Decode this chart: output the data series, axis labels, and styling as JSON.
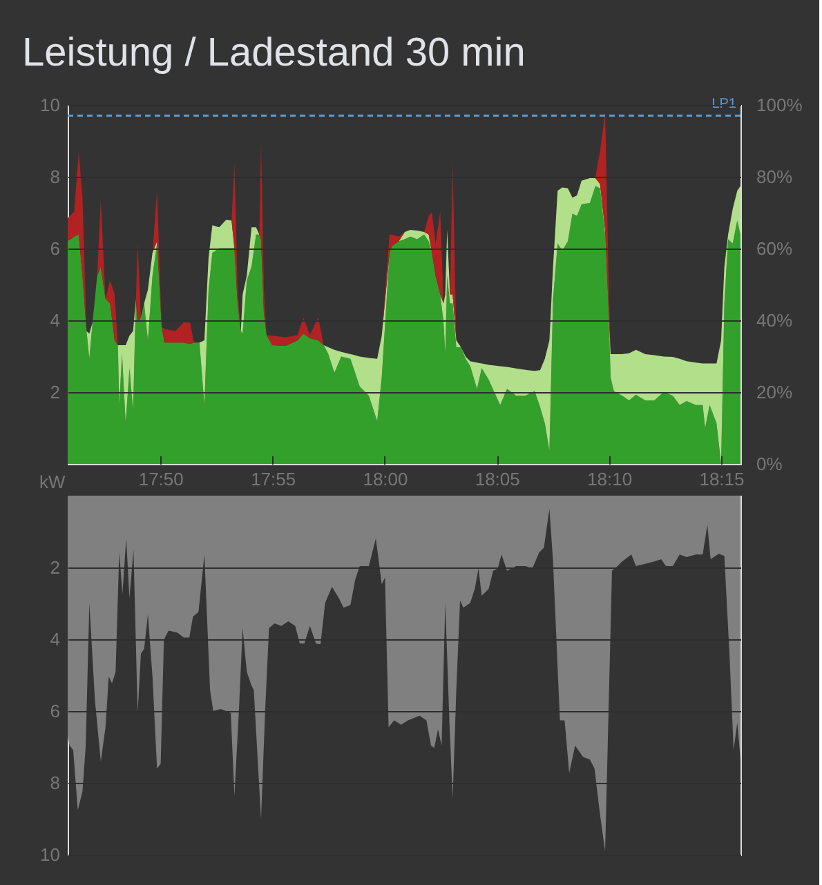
{
  "chart_data": [
    {
      "type": "area",
      "title": "Leistung / Ladestand 30 min",
      "ylabel": "kW",
      "stacked": true,
      "grid": "y",
      "xlim": [
        17.7644,
        18.2644
      ],
      "xticks": [
        {
          "value": 17.8333,
          "label": "17:50"
        },
        {
          "value": 17.9167,
          "label": "17:55"
        },
        {
          "value": 18.0,
          "label": "18:00"
        },
        {
          "value": 18.0833,
          "label": "18:05"
        },
        {
          "value": 18.1667,
          "label": "18:10"
        },
        {
          "value": 18.25,
          "label": "18:15"
        }
      ],
      "ylim": [
        0,
        10
      ],
      "yticks": [
        2,
        4,
        6,
        8,
        10
      ],
      "y2lim": [
        0,
        100
      ],
      "y2ticks": [
        {
          "value": 0,
          "label": "0%"
        },
        {
          "value": 20,
          "label": "20%"
        },
        {
          "value": 40,
          "label": "40%"
        },
        {
          "value": 60,
          "label": "60%"
        },
        {
          "value": 80,
          "label": "80%"
        },
        {
          "value": 100,
          "label": "100%"
        }
      ],
      "x": [
        17.7644,
        17.7692,
        17.7726,
        17.7754,
        17.7784,
        17.7805,
        17.7829,
        17.7863,
        17.789,
        17.7925,
        17.7959,
        17.7993,
        17.8017,
        17.8027,
        17.8048,
        17.8075,
        17.8103,
        17.813,
        17.8151,
        17.8164,
        17.8188,
        17.8212,
        17.824,
        17.8274,
        17.8308,
        17.8342,
        17.8363,
        17.8445,
        17.8506,
        17.8554,
        17.8582,
        17.8623,
        17.866,
        17.8691,
        17.8719,
        17.877,
        17.8821,
        17.8862,
        17.8883,
        17.8907,
        17.8931,
        17.8944,
        17.8975,
        17.901,
        17.9044,
        17.9068,
        17.9081,
        17.9102,
        17.9122,
        17.9164,
        17.9266,
        17.9352,
        17.9396,
        17.9444,
        17.9506,
        17.9547,
        17.9581,
        17.9626,
        17.9677,
        17.9745,
        17.9814,
        17.9882,
        17.9944,
        17.9978,
        18.0036,
        18.0053,
        18.0105,
        18.0149,
        18.019,
        18.0241,
        18.0293,
        18.0327,
        18.0351,
        18.0378,
        18.0413,
        18.0437,
        18.045,
        18.0464,
        18.0485,
        18.0505,
        18.0532,
        18.0567,
        18.0601,
        18.0635,
        18.0686,
        18.0721,
        18.0772,
        18.0858,
        18.0909,
        18.0977,
        18.1046,
        18.1114,
        18.1155,
        18.119,
        18.1224,
        18.1251,
        18.1285,
        18.132,
        18.1361,
        18.1395,
        18.1429,
        18.1463,
        18.1525,
        18.1566,
        18.16,
        18.1638,
        18.1662,
        18.1679,
        18.1703,
        18.1765,
        18.1816,
        18.1867,
        18.1936,
        18.2004,
        18.2073,
        18.2141,
        18.2192,
        18.2244,
        18.2312,
        18.2363,
        18.2381,
        18.2415,
        18.2466,
        18.25,
        18.2524,
        18.2552,
        18.2586,
        18.262,
        18.2644
      ],
      "series": [
        {
          "color": "#33a02c",
          "values": [
            6.2,
            6.33,
            6.39,
            5.24,
            3.7,
            2.93,
            3.95,
            5.24,
            5.49,
            4.6,
            4.47,
            3.44,
            3.31,
            1.64,
            3.06,
            1.13,
            2.67,
            1.51,
            4.6,
            3.95,
            4.08,
            4.47,
            3.44,
            5.24,
            6.14,
            3.83,
            3.38,
            3.38,
            3.38,
            3.34,
            3.38,
            3.38,
            1.64,
            4.85,
            5.88,
            6.01,
            6.01,
            6.01,
            6.01,
            4.47,
            3.7,
            3.63,
            5.11,
            5.49,
            6.39,
            6.39,
            6.26,
            4.21,
            3.59,
            3.31,
            3.29,
            3.44,
            3.63,
            3.5,
            3.44,
            3.31,
            3.06,
            2.54,
            2.99,
            2.93,
            2.16,
            1.9,
            1.19,
            2.41,
            5.88,
            6.07,
            6.2,
            6.26,
            6.33,
            6.26,
            6.39,
            6.2,
            5.88,
            5.24,
            4.72,
            3.95,
            3.06,
            5.24,
            4.47,
            4.47,
            3.25,
            3.25,
            2.93,
            2.73,
            2.09,
            2.67,
            2.35,
            1.64,
            2.09,
            1.9,
            1.9,
            2.03,
            1.58,
            1.13,
            0.36,
            4.6,
            6.14,
            5.94,
            6.2,
            6.97,
            6.91,
            7.23,
            7.27,
            7.74,
            7.68,
            6.39,
            4.47,
            2.41,
            2.03,
            1.9,
            1.77,
            1.93,
            1.77,
            1.77,
            2.0,
            1.9,
            1.64,
            1.75,
            1.64,
            1.64,
            1.0,
            1.64,
            1.13,
            0,
            4.47,
            6.26,
            6.14,
            6.78,
            6.39
          ]
        },
        {
          "color": "#b2df8a",
          "values": [
            0,
            0,
            0,
            0,
            0,
            0.7,
            0,
            0,
            0,
            0,
            0,
            0,
            0,
            1.67,
            0.25,
            2.18,
            0.9,
            2.19,
            0,
            0,
            0,
            0,
            1.41,
            0.64,
            0.06,
            0,
            0,
            0,
            0,
            0,
            0,
            0,
            1.8,
            0.9,
            0.77,
            0.58,
            0.79,
            0.77,
            0,
            0,
            0,
            1.09,
            0.13,
            1.1,
            0.2,
            0,
            0,
            0,
            0,
            0,
            0,
            0,
            0,
            0,
            0,
            0,
            0.19,
            0.64,
            0.13,
            0.13,
            0.83,
            1.05,
            1.74,
            1.16,
            0,
            0,
            0,
            0.2,
            0.19,
            0.24,
            0.07,
            0.19,
            0,
            0,
            0,
            0.52,
            1.66,
            1.28,
            0.25,
            0.25,
            0.19,
            0,
            0.06,
            0.13,
            0.73,
            0.13,
            0.41,
            1.08,
            0.61,
            0.76,
            0.72,
            0.56,
            1.03,
            1.8,
            3.08,
            0.89,
            1.47,
            1.76,
            1.48,
            0.45,
            0.57,
            0.66,
            0.69,
            0.22,
            0.12,
            0.13,
            0,
            0.65,
            1.03,
            1.16,
            1.31,
            1.25,
            1.29,
            1.26,
            0.99,
            1.08,
            1.29,
            1.11,
            1.18,
            1.16,
            1.8,
            1.16,
            1.67,
            3.44,
            1.02,
            0.13,
            0.96,
            0.83,
            1.35
          ]
        },
        {
          "color": "#b22222",
          "values": [
            0.64,
            0.7,
            2.31,
            2.18,
            0,
            0,
            0,
            0,
            1.87,
            0,
            0.64,
            1.28,
            0,
            0,
            0,
            0,
            0,
            0,
            0,
            2.19,
            0,
            0,
            0,
            0,
            1.41,
            0,
            0.38,
            0.32,
            0.57,
            0.59,
            0,
            0,
            0,
            0,
            0,
            0,
            0,
            0,
            2.37,
            0.38,
            0,
            0,
            0,
            0,
            0,
            0,
            2.7,
            0.64,
            0,
            0.26,
            0.24,
            0.15,
            0.45,
            0.09,
            0.64,
            0,
            0,
            0,
            0,
            0,
            0,
            0,
            0,
            0,
            0.51,
            0.32,
            0.13,
            0,
            0,
            0,
            0,
            0.52,
            1.13,
            0.9,
            2.31,
            0,
            0,
            0,
            0,
            3.66,
            0,
            0,
            0,
            0,
            0,
            0,
            0,
            0,
            0,
            0,
            0,
            0,
            0,
            0,
            0,
            0,
            0,
            0,
            0,
            0,
            0,
            0,
            0,
            0.04,
            0.9,
            3.27,
            1.02,
            0,
            0,
            0,
            0,
            0,
            0,
            0,
            0,
            0,
            0,
            0,
            0,
            0,
            0,
            0,
            0,
            0,
            0,
            0,
            0,
            0,
            0
          ]
        },
        {
          "name": "LP1",
          "type": "line",
          "axis": "y2",
          "line_style": "dashed",
          "color": "#5b9bd5",
          "x": [
            17.7644,
            18.2644
          ],
          "values": [
            97,
            97
          ]
        }
      ]
    },
    {
      "type": "area",
      "grid": "y",
      "tick_labels": "y",
      "xlim": [
        17.7644,
        18.2644
      ],
      "ylim": [
        10,
        0
      ],
      "yticks": [
        2,
        4,
        6,
        8,
        10
      ],
      "x": [
        17.7644,
        17.7658,
        17.7685,
        17.7719,
        17.7754,
        17.7778,
        17.7805,
        17.7846,
        17.789,
        17.7925,
        17.7949,
        17.7973,
        17.8,
        17.8027,
        17.8051,
        17.8079,
        17.8103,
        17.8133,
        17.8164,
        17.8188,
        17.8212,
        17.824,
        17.8274,
        17.8308,
        17.8335,
        17.8359,
        17.8394,
        17.8462,
        17.8506,
        17.8548,
        17.8575,
        17.8616,
        17.866,
        17.8702,
        17.8726,
        17.878,
        17.8821,
        17.8856,
        17.8883,
        17.8917,
        17.8944,
        17.8975,
        17.901,
        17.9027,
        17.9081,
        17.9112,
        17.914,
        17.9181,
        17.9232,
        17.9283,
        17.9335,
        17.9369,
        17.9403,
        17.9444,
        17.9489,
        17.9523,
        17.9557,
        17.9608,
        17.966,
        17.9694,
        17.9745,
        17.978,
        17.9814,
        17.9882,
        17.9934,
        17.9978,
        18.0002,
        18.0029,
        18.007,
        18.0122,
        18.0173,
        18.0259,
        18.031,
        18.0344,
        18.0368,
        18.0396,
        18.0423,
        18.045,
        18.0481,
        18.0505,
        18.0532,
        18.056,
        18.0584,
        18.0635,
        18.0669,
        18.0697,
        18.0721,
        18.0772,
        18.0806,
        18.084,
        18.0868,
        18.0909,
        18.0977,
        18.1046,
        18.1097,
        18.1148,
        18.1183,
        18.1224,
        18.1251,
        18.1302,
        18.1337,
        18.1371,
        18.1415,
        18.1474,
        18.1525,
        18.1559,
        18.16,
        18.1638,
        18.1689,
        18.173,
        18.1765,
        18.1833,
        18.1867,
        18.1936,
        18.2004,
        18.2055,
        18.209,
        18.2141,
        18.2192,
        18.2244,
        18.2312,
        18.2363,
        18.2398,
        18.2422,
        18.2483,
        18.2524,
        18.2562,
        18.2593,
        18.262,
        18.2644
      ],
      "series": [
        {
          "color": "#808080",
          "values": [
            6.71,
            6.96,
            7.09,
            8.76,
            8.24,
            6.96,
            2.99,
            5.68,
            7.41,
            6.45,
            5.04,
            5.23,
            4.91,
            1.58,
            2.73,
            1.19,
            2.86,
            1.51,
            6.06,
            4.4,
            4.27,
            3.31,
            5.04,
            7.6,
            7.47,
            4.01,
            3.76,
            3.82,
            3.95,
            3.95,
            3.37,
            3.24,
            1.64,
            5.42,
            6.0,
            5.94,
            6.0,
            6.06,
            8.37,
            5.94,
            3.69,
            4.91,
            5.29,
            5.42,
            9.01,
            5.94,
            3.69,
            3.56,
            3.63,
            3.5,
            3.63,
            4.12,
            4.12,
            3.63,
            4.12,
            4.14,
            2.99,
            2.54,
            2.86,
            3.12,
            3.05,
            2.35,
            1.96,
            1.96,
            1.19,
            2.47,
            2.28,
            6.45,
            6.26,
            6.38,
            6.26,
            6.13,
            6.26,
            6.96,
            7.03,
            6.51,
            6.96,
            2.99,
            6.32,
            8.44,
            5.42,
            2.92,
            3.12,
            2.99,
            2.6,
            2.03,
            2.79,
            2.6,
            2.09,
            2.03,
            1.64,
            2.09,
            1.96,
            1.96,
            2.03,
            1.58,
            1.45,
            0.36,
            1.83,
            6.26,
            6.26,
            7.73,
            6.96,
            7.28,
            7.35,
            7.6,
            8.88,
            9.91,
            2.09,
            1.96,
            1.83,
            1.64,
            1.96,
            1.9,
            1.83,
            1.77,
            1.96,
            1.96,
            1.64,
            1.71,
            1.64,
            1.64,
            0.81,
            1.77,
            1.62,
            1.68,
            4.4,
            7.09,
            6.32,
            7.35
          ]
        }
      ]
    }
  ]
}
